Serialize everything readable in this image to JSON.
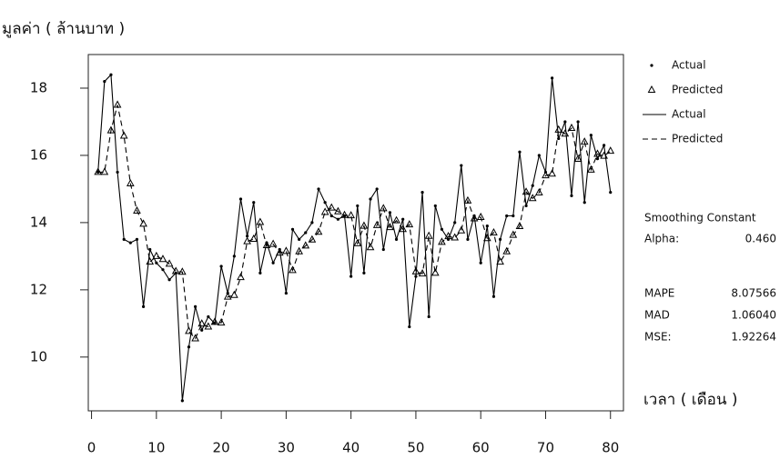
{
  "chart_data": {
    "type": "line",
    "y_label": "มูลค่า ( ล้านบาท )",
    "x_label": "เวลา ( เดือน )",
    "x": [
      1,
      2,
      3,
      4,
      5,
      6,
      7,
      8,
      9,
      10,
      11,
      12,
      13,
      14,
      15,
      16,
      17,
      18,
      19,
      20,
      21,
      22,
      23,
      24,
      25,
      26,
      27,
      28,
      29,
      30,
      31,
      32,
      33,
      34,
      35,
      36,
      37,
      38,
      39,
      40,
      41,
      42,
      43,
      44,
      45,
      46,
      47,
      48,
      49,
      50,
      51,
      52,
      53,
      54,
      55,
      56,
      57,
      58,
      59,
      60,
      61,
      62,
      63,
      64,
      65,
      66,
      67,
      68,
      69,
      70,
      71,
      72,
      73,
      74,
      75,
      76,
      77,
      78,
      79,
      80
    ],
    "series": [
      {
        "name": "Actual",
        "color": "#000000",
        "marker": "dot",
        "dashed": false,
        "values": [
          15.5,
          18.2,
          18.4,
          15.5,
          13.5,
          13.4,
          13.5,
          11.5,
          13.2,
          12.8,
          12.6,
          12.3,
          12.5,
          8.7,
          10.3,
          11.5,
          10.8,
          11.2,
          11.0,
          12.7,
          11.9,
          13.0,
          14.7,
          13.6,
          14.6,
          12.5,
          13.4,
          12.8,
          13.2,
          11.9,
          13.8,
          13.5,
          13.7,
          14.0,
          15.0,
          14.6,
          14.2,
          14.1,
          14.2,
          12.4,
          14.5,
          12.5,
          14.7,
          15.0,
          13.2,
          14.3,
          13.5,
          14.1,
          10.9,
          12.4,
          14.9,
          11.2,
          14.5,
          13.8,
          13.5,
          14.0,
          15.7,
          13.5,
          14.2,
          12.8,
          13.9,
          11.8,
          13.5,
          14.2,
          14.2,
          16.1,
          14.5,
          15.1,
          16.0,
          15.5,
          18.3,
          16.5,
          17.0,
          14.8,
          17.0,
          14.6,
          16.6,
          15.9,
          16.3,
          14.9
        ]
      },
      {
        "name": "Predicted",
        "color": "#000000",
        "marker": "triangle",
        "dashed": true,
        "values": [
          15.5,
          15.5,
          16.74,
          17.5,
          16.58,
          15.16,
          14.35,
          13.96,
          12.83,
          13.0,
          12.91,
          12.77,
          12.55,
          12.53,
          10.77,
          10.55,
          10.99,
          10.9,
          11.04,
          11.02,
          11.79,
          11.84,
          12.37,
          13.44,
          13.51,
          14.01,
          13.32,
          13.36,
          13.1,
          13.15,
          12.58,
          13.14,
          13.31,
          13.49,
          13.72,
          14.31,
          14.44,
          14.33,
          14.22,
          14.21,
          13.38,
          13.9,
          13.26,
          13.92,
          14.42,
          13.86,
          14.06,
          13.8,
          13.94,
          12.54,
          12.48,
          13.6,
          12.5,
          13.42,
          13.59,
          13.55,
          13.76,
          14.65,
          14.12,
          14.16,
          13.53,
          13.7,
          12.83,
          13.14,
          13.63,
          13.89,
          14.91,
          14.72,
          14.89,
          15.4,
          15.45,
          16.76,
          16.64,
          16.81,
          15.89,
          16.4,
          15.57,
          16.04,
          15.98,
          16.13
        ]
      }
    ],
    "xlim": [
      -0.5,
      82
    ],
    "ylim": [
      8.4,
      19
    ],
    "xticks": [
      0,
      10,
      20,
      30,
      40,
      50,
      60,
      70,
      80
    ],
    "yticks": [
      10,
      12,
      14,
      16,
      18
    ],
    "smoothing_title": "Smoothing Constant",
    "smoothing": [
      {
        "label": "Alpha:",
        "value": "0.460"
      }
    ],
    "accuracy": [
      {
        "label": "MAPE",
        "value": "8.07566"
      },
      {
        "label": "MAD",
        "value": "1.06040"
      },
      {
        "label": "MSE:",
        "value": "1.92264"
      }
    ]
  }
}
